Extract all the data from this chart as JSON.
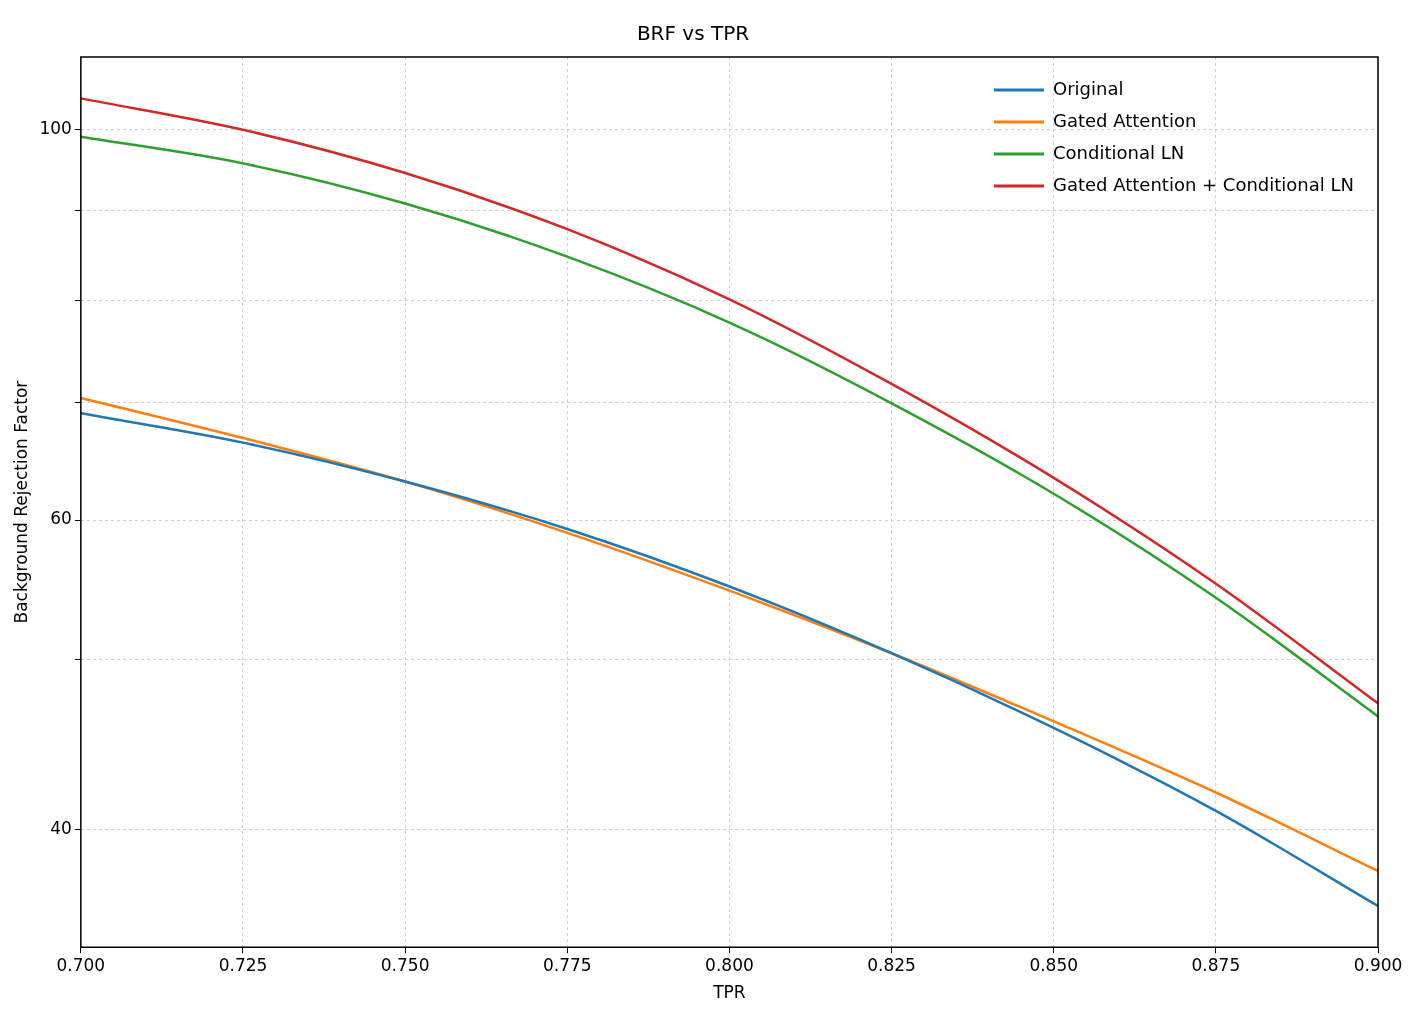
{
  "chart_data": {
    "type": "line",
    "title": "BRF vs TPR",
    "xlabel": "TPR",
    "ylabel": "Background Rejection Factor",
    "x": [
      0.7,
      0.725,
      0.75,
      0.775,
      0.8,
      0.825,
      0.85,
      0.875,
      0.9
    ],
    "series": [
      {
        "name": "Original",
        "color": "#1f77b4",
        "values": [
          69.0,
          66.4,
          63.1,
          59.3,
          55.0,
          50.4,
          45.7,
          41.0,
          36.2
        ]
      },
      {
        "name": "Gated Attention",
        "color": "#ff7f0e",
        "values": [
          70.4,
          66.8,
          63.1,
          59.0,
          54.7,
          50.4,
          46.1,
          42.0,
          37.9
        ]
      },
      {
        "name": "Conditional LN",
        "color": "#2ca02c",
        "values": [
          99.1,
          95.7,
          90.8,
          84.7,
          77.7,
          69.9,
          62.1,
          54.2,
          46.4
        ]
      },
      {
        "name": "Gated Attention + Conditional LN",
        "color": "#d62728",
        "values": [
          104.2,
          100.0,
          94.5,
          87.8,
          80.1,
          71.7,
          63.4,
          55.2,
          47.2
        ]
      }
    ],
    "xlim": [
      0.7,
      0.9
    ],
    "xticks": [
      {
        "value": 0.7,
        "label": "0.700"
      },
      {
        "value": 0.725,
        "label": "0.725"
      },
      {
        "value": 0.75,
        "label": "0.750"
      },
      {
        "value": 0.775,
        "label": "0.775"
      },
      {
        "value": 0.8,
        "label": "0.800"
      },
      {
        "value": 0.825,
        "label": "0.825"
      },
      {
        "value": 0.85,
        "label": "0.850"
      },
      {
        "value": 0.875,
        "label": "0.875"
      },
      {
        "value": 0.9,
        "label": "0.900"
      }
    ],
    "ylim": [
      34.3,
      110
    ],
    "yticks": [
      40,
      {
        "value": 50,
        "label": null
      },
      60,
      {
        "value": 70,
        "label": null
      },
      {
        "value": 80,
        "label": null
      },
      {
        "value": 90,
        "label": null
      },
      100
    ],
    "log": "y",
    "grid": true,
    "legend": "top right",
    "marker": "none",
    "line_style": "solid"
  }
}
